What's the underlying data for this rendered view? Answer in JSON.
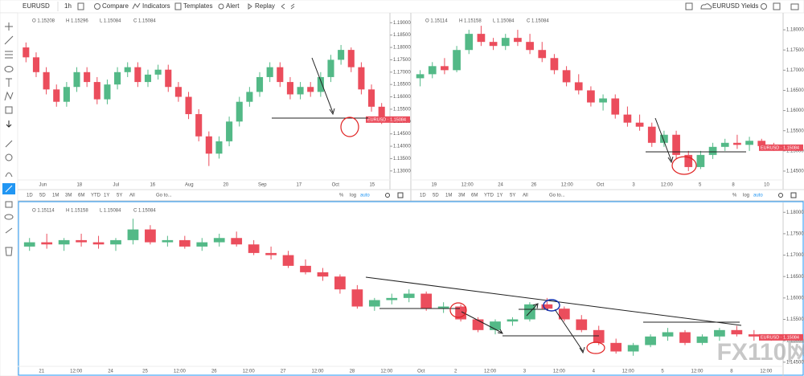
{
  "toolbar": {
    "symbol": "EURUSD",
    "interval": "1h",
    "items": [
      "Compare",
      "Indicators",
      "Templates",
      "Alert",
      "Replay"
    ],
    "layout": "EURUSD Yields"
  },
  "range_bar": {
    "ranges": [
      "1D",
      "5D",
      "1M",
      "3M",
      "6M",
      "YTD",
      "1Y",
      "5Y",
      "All"
    ],
    "goto": "Go to...",
    "options": [
      "%",
      "log",
      "auto"
    ]
  },
  "watermark": "FX110网",
  "chart_data": [
    {
      "type": "candlestick",
      "legend": [
        "O 1.15208",
        "H 1.15296",
        "L 1.15084",
        "C 1.15084"
      ],
      "price_tag": "EURUSD · 1.15084",
      "up_color": "#53b987",
      "down_color": "#eb4d5c",
      "candles": [
        [
          1.18,
          1.182,
          1.174,
          1.176
        ],
        [
          1.176,
          1.178,
          1.168,
          1.17
        ],
        [
          1.17,
          1.172,
          1.161,
          1.163
        ],
        [
          1.163,
          1.165,
          1.156,
          1.158
        ],
        [
          1.158,
          1.166,
          1.156,
          1.164
        ],
        [
          1.164,
          1.172,
          1.162,
          1.17
        ],
        [
          1.17,
          1.172,
          1.164,
          1.166
        ],
        [
          1.166,
          1.168,
          1.157,
          1.159
        ],
        [
          1.159,
          1.167,
          1.157,
          1.165
        ],
        [
          1.165,
          1.172,
          1.163,
          1.17
        ],
        [
          1.17,
          1.174,
          1.168,
          1.172
        ],
        [
          1.172,
          1.174,
          1.164,
          1.166
        ],
        [
          1.166,
          1.171,
          1.164,
          1.169
        ],
        [
          1.169,
          1.173,
          1.167,
          1.171
        ],
        [
          1.171,
          1.173,
          1.162,
          1.164
        ],
        [
          1.164,
          1.166,
          1.158,
          1.16
        ],
        [
          1.16,
          1.162,
          1.151,
          1.153
        ],
        [
          1.153,
          1.155,
          1.142,
          1.144
        ],
        [
          1.144,
          1.146,
          1.132,
          1.137
        ],
        [
          1.137,
          1.144,
          1.135,
          1.142
        ],
        [
          1.142,
          1.152,
          1.14,
          1.15
        ],
        [
          1.15,
          1.16,
          1.148,
          1.158
        ],
        [
          1.158,
          1.164,
          1.156,
          1.162
        ],
        [
          1.162,
          1.17,
          1.16,
          1.168
        ],
        [
          1.168,
          1.174,
          1.166,
          1.172
        ],
        [
          1.172,
          1.174,
          1.164,
          1.166
        ],
        [
          1.166,
          1.168,
          1.159,
          1.161
        ],
        [
          1.161,
          1.166,
          1.159,
          1.164
        ],
        [
          1.164,
          1.166,
          1.16,
          1.162
        ],
        [
          1.162,
          1.17,
          1.16,
          1.168
        ],
        [
          1.168,
          1.177,
          1.166,
          1.175
        ],
        [
          1.175,
          1.181,
          1.173,
          1.179
        ],
        [
          1.179,
          1.18,
          1.17,
          1.172
        ],
        [
          1.172,
          1.174,
          1.161,
          1.163
        ],
        [
          1.163,
          1.165,
          1.154,
          1.156
        ],
        [
          1.156,
          1.1575,
          1.149,
          1.1508
        ]
      ],
      "ylim": [
        1.127,
        1.194
      ],
      "yticks": [
        {
          "value": 1.19,
          "label": "1.19000"
        },
        {
          "value": 1.185,
          "label": "1.18500"
        },
        {
          "value": 1.18,
          "label": "1.18000"
        },
        {
          "value": 1.175,
          "label": "1.17500"
        },
        {
          "value": 1.17,
          "label": "1.17000"
        },
        {
          "value": 1.165,
          "label": "1.16500"
        },
        {
          "value": 1.16,
          "label": "1.16000"
        },
        {
          "value": 1.155,
          "label": "1.15500"
        },
        {
          "value": 1.15,
          "label": "1.15000"
        },
        {
          "value": 1.145,
          "label": "1.14500"
        },
        {
          "value": 1.14,
          "label": "1.14000"
        },
        {
          "value": 1.135,
          "label": "1.13500"
        },
        {
          "value": 1.13,
          "label": "1.13000"
        }
      ],
      "xtick_labels": [
        "Jun",
        "18",
        "Jul",
        "16",
        "Aug",
        "20",
        "Sep",
        "17",
        "Oct",
        "15"
      ]
    },
    {
      "type": "candlestick",
      "legend": [
        "O 1.15114",
        "H 1.15158",
        "L 1.15084",
        "C 1.15084"
      ],
      "price_tag": "EURUSD · 1.15084",
      "up_color": "#53b987",
      "down_color": "#eb4d5c",
      "candles": [
        [
          1.168,
          1.17,
          1.166,
          1.169
        ],
        [
          1.169,
          1.172,
          1.168,
          1.171
        ],
        [
          1.171,
          1.173,
          1.169,
          1.17
        ],
        [
          1.17,
          1.176,
          1.1695,
          1.175
        ],
        [
          1.175,
          1.18,
          1.174,
          1.179
        ],
        [
          1.179,
          1.181,
          1.176,
          1.177
        ],
        [
          1.177,
          1.178,
          1.175,
          1.176
        ],
        [
          1.176,
          1.179,
          1.175,
          1.178
        ],
        [
          1.178,
          1.18,
          1.176,
          1.177
        ],
        [
          1.177,
          1.179,
          1.174,
          1.175
        ],
        [
          1.175,
          1.177,
          1.172,
          1.173
        ],
        [
          1.173,
          1.174,
          1.169,
          1.17
        ],
        [
          1.17,
          1.171,
          1.166,
          1.167
        ],
        [
          1.167,
          1.169,
          1.164,
          1.165
        ],
        [
          1.165,
          1.166,
          1.161,
          1.162
        ],
        [
          1.162,
          1.164,
          1.16,
          1.163
        ],
        [
          1.163,
          1.164,
          1.158,
          1.159
        ],
        [
          1.159,
          1.161,
          1.156,
          1.157
        ],
        [
          1.157,
          1.159,
          1.155,
          1.156
        ],
        [
          1.156,
          1.157,
          1.151,
          1.152
        ],
        [
          1.152,
          1.155,
          1.151,
          1.154
        ],
        [
          1.154,
          1.155,
          1.148,
          1.149
        ],
        [
          1.149,
          1.15,
          1.145,
          1.146
        ],
        [
          1.146,
          1.15,
          1.1455,
          1.149
        ],
        [
          1.149,
          1.152,
          1.148,
          1.151
        ],
        [
          1.151,
          1.153,
          1.15,
          1.152
        ],
        [
          1.152,
          1.154,
          1.1505,
          1.1515
        ],
        [
          1.1515,
          1.1535,
          1.15,
          1.1525
        ],
        [
          1.1525,
          1.153,
          1.1505,
          1.1512
        ],
        [
          1.1512,
          1.152,
          1.15,
          1.1508
        ]
      ],
      "ylim": [
        1.1432,
        1.1842
      ],
      "yticks": [
        {
          "value": 1.18,
          "label": "1.18000"
        },
        {
          "value": 1.175,
          "label": "1.17500"
        },
        {
          "value": 1.17,
          "label": "1.17000"
        },
        {
          "value": 1.165,
          "label": "1.16500"
        },
        {
          "value": 1.16,
          "label": "1.16000"
        },
        {
          "value": 1.155,
          "label": "1.15500"
        },
        {
          "value": 1.15,
          "label": "1.15000"
        },
        {
          "value": 1.145,
          "label": "1.14500"
        }
      ],
      "xtick_labels": [
        "19",
        "12:00",
        "24",
        "26",
        "12:00",
        "Oct",
        "3",
        "12:00",
        "5",
        "8",
        "10"
      ]
    },
    {
      "type": "candlestick",
      "legend": [
        "O 1.15114",
        "H 1.15158",
        "L 1.15084",
        "C 1.15084"
      ],
      "price_tag": "EURUSD · 1.15084",
      "up_color": "#53b987",
      "down_color": "#eb4d5c",
      "candles": [
        [
          1.172,
          1.174,
          1.171,
          1.173
        ],
        [
          1.173,
          1.175,
          1.1715,
          1.1725
        ],
        [
          1.1725,
          1.174,
          1.171,
          1.1735
        ],
        [
          1.1735,
          1.175,
          1.172,
          1.173
        ],
        [
          1.173,
          1.1745,
          1.1715,
          1.1725
        ],
        [
          1.1725,
          1.174,
          1.171,
          1.1735
        ],
        [
          1.1735,
          1.1785,
          1.1725,
          1.176
        ],
        [
          1.176,
          1.177,
          1.1725,
          1.173
        ],
        [
          1.173,
          1.1745,
          1.172,
          1.1735
        ],
        [
          1.1735,
          1.1745,
          1.1715,
          1.172
        ],
        [
          1.172,
          1.174,
          1.171,
          1.173
        ],
        [
          1.173,
          1.175,
          1.172,
          1.174
        ],
        [
          1.174,
          1.1755,
          1.172,
          1.1725
        ],
        [
          1.1725,
          1.1735,
          1.17,
          1.1705
        ],
        [
          1.1705,
          1.172,
          1.169,
          1.17
        ],
        [
          1.17,
          1.171,
          1.167,
          1.1675
        ],
        [
          1.1675,
          1.169,
          1.1655,
          1.166
        ],
        [
          1.166,
          1.167,
          1.164,
          1.165
        ],
        [
          1.165,
          1.1655,
          1.161,
          1.162
        ],
        [
          1.162,
          1.163,
          1.1575,
          1.158
        ],
        [
          1.158,
          1.16,
          1.157,
          1.1595
        ],
        [
          1.1595,
          1.161,
          1.1585,
          1.16
        ],
        [
          1.16,
          1.162,
          1.159,
          1.161
        ],
        [
          1.161,
          1.1615,
          1.157,
          1.1575
        ],
        [
          1.1575,
          1.159,
          1.1565,
          1.158
        ],
        [
          1.158,
          1.1585,
          1.1545,
          1.155
        ],
        [
          1.155,
          1.1555,
          1.152,
          1.1525
        ],
        [
          1.1525,
          1.155,
          1.1515,
          1.1545
        ],
        [
          1.1545,
          1.1555,
          1.1535,
          1.155
        ],
        [
          1.155,
          1.159,
          1.1545,
          1.1585
        ],
        [
          1.1585,
          1.16,
          1.157,
          1.1575
        ],
        [
          1.1575,
          1.158,
          1.1545,
          1.155
        ],
        [
          1.155,
          1.156,
          1.152,
          1.1525
        ],
        [
          1.1525,
          1.1535,
          1.149,
          1.1495
        ],
        [
          1.1495,
          1.1505,
          1.147,
          1.1475
        ],
        [
          1.1475,
          1.1495,
          1.1465,
          1.149
        ],
        [
          1.149,
          1.1515,
          1.1485,
          1.151
        ],
        [
          1.151,
          1.153,
          1.15,
          1.152
        ],
        [
          1.152,
          1.1525,
          1.149,
          1.1495
        ],
        [
          1.1495,
          1.1515,
          1.149,
          1.151
        ],
        [
          1.151,
          1.153,
          1.15,
          1.1525
        ],
        [
          1.1525,
          1.1535,
          1.151,
          1.1515
        ],
        [
          1.1515,
          1.1525,
          1.15,
          1.151
        ],
        [
          1.151,
          1.1515,
          1.15,
          1.1508
        ]
      ],
      "ylim": [
        1.1444,
        1.1823
      ],
      "yticks": [
        {
          "value": 1.18,
          "label": "1.18000"
        },
        {
          "value": 1.175,
          "label": "1.17500"
        },
        {
          "value": 1.17,
          "label": "1.17000"
        },
        {
          "value": 1.165,
          "label": "1.16500"
        },
        {
          "value": 1.16,
          "label": "1.16000"
        },
        {
          "value": 1.155,
          "label": "1.15500"
        },
        {
          "value": 1.15,
          "label": "1.15000"
        },
        {
          "value": 1.145,
          "label": "1.14500"
        }
      ],
      "xtick_labels": [
        "21",
        "12:00",
        "24",
        "25",
        "12:00",
        "26",
        "12:00",
        "27",
        "12:00",
        "28",
        "12:00",
        "Oct",
        "2",
        "12:00",
        "3",
        "12:00",
        "4",
        "12:00",
        "5",
        "12:00",
        "8",
        "12:00"
      ]
    }
  ]
}
